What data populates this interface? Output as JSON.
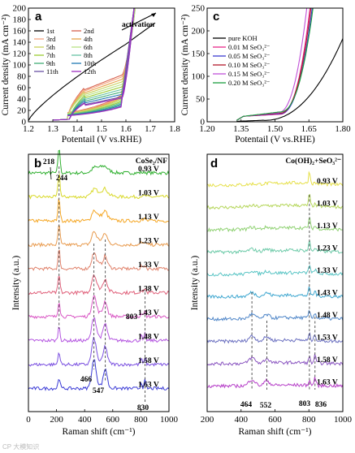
{
  "watermark": "CP 大模知识",
  "chart_data": [
    {
      "panel": "a",
      "type": "line",
      "xlabel": "Potentail (V vs.RHE)",
      "ylabel": "Current density (mA cm⁻²)",
      "xlim": [
        1.2,
        1.8
      ],
      "ylim": [
        0,
        200
      ],
      "xticks": [
        "1.2",
        "1.3",
        "1.4",
        "1.5",
        "1.6",
        "1.7",
        "1.8"
      ],
      "yticks": [
        "0",
        "20",
        "40",
        "60",
        "80",
        "100",
        "120",
        "140",
        "160",
        "180",
        "200"
      ],
      "annotation": "activation",
      "legend_position": "top-left",
      "series": [
        {
          "name": "1st",
          "color": "#000000",
          "onset": 1.26,
          "plateau": 160,
          "end": [
            1.72,
            180
          ],
          "forward": true
        },
        {
          "name": "2nd",
          "color": "#d6604d",
          "onset": 1.36,
          "plateau": 75,
          "end": [
            1.64,
            205
          ]
        },
        {
          "name": "3rd",
          "color": "#f4a582",
          "onset": 1.36,
          "plateau": 72,
          "end": [
            1.64,
            205
          ]
        },
        {
          "name": "4th",
          "color": "#e6a44c",
          "onset": 1.36,
          "plateau": 68,
          "end": [
            1.64,
            205
          ]
        },
        {
          "name": "5th",
          "color": "#c9d15a",
          "onset": 1.36,
          "plateau": 64,
          "end": [
            1.64,
            205
          ]
        },
        {
          "name": "6th",
          "color": "#b8e186",
          "onset": 1.36,
          "plateau": 60,
          "end": [
            1.64,
            205
          ]
        },
        {
          "name": "7th",
          "color": "#9acd32",
          "onset": 1.37,
          "plateau": 56,
          "end": [
            1.635,
            205
          ]
        },
        {
          "name": "8th",
          "color": "#66c2a4",
          "onset": 1.37,
          "plateau": 52,
          "end": [
            1.635,
            205
          ]
        },
        {
          "name": "9th",
          "color": "#41ae76",
          "onset": 1.37,
          "plateau": 48,
          "end": [
            1.635,
            205
          ]
        },
        {
          "name": "10th",
          "color": "#1f78b4",
          "onset": 1.37,
          "plateau": 44,
          "end": [
            1.635,
            205
          ]
        },
        {
          "name": "11th",
          "color": "#6a51a3",
          "onset": 1.37,
          "plateau": 40,
          "end": [
            1.635,
            205
          ]
        },
        {
          "name": "12th",
          "color": "#9e2fbf",
          "onset": 1.37,
          "plateau": 38,
          "end": [
            1.635,
            205
          ]
        }
      ]
    },
    {
      "panel": "c",
      "type": "line",
      "xlabel": "Potentail (V vs.RHE)",
      "ylabel": "Current density (mA cm⁻²)",
      "xlim": [
        1.2,
        1.8
      ],
      "ylim": [
        0,
        250
      ],
      "xticks": [
        "1.20",
        "1.35",
        "1.50",
        "1.65",
        "1.80"
      ],
      "yticks": [
        "0",
        "50",
        "100",
        "150",
        "200",
        "250"
      ],
      "legend_position": "top-left",
      "series": [
        {
          "name": "pure KOH",
          "color": "#000000",
          "onset": 1.45,
          "end": [
            1.8,
            180
          ]
        },
        {
          "name": "0.01 M SeO₃²⁻",
          "color": "#e7298a",
          "onset": 1.52,
          "end": [
            1.655,
            235
          ]
        },
        {
          "name": "0.05 M SeO₃²⁻",
          "color": "#3b3bd1",
          "onset": 1.52,
          "end": [
            1.665,
            235
          ]
        },
        {
          "name": "0.10 M SeO₃²⁻",
          "color": "#b2182b",
          "onset": 1.52,
          "end": [
            1.66,
            235
          ]
        },
        {
          "name": "0.15 M SeO₃²⁻",
          "color": "#c051d8",
          "onset": 1.51,
          "end": [
            1.645,
            250
          ]
        },
        {
          "name": "0.20 M SeO₃²⁻",
          "color": "#1b9e3e",
          "onset": 1.52,
          "end": [
            1.67,
            235
          ]
        }
      ]
    },
    {
      "panel": "b",
      "type": "line",
      "title": "CoSe₂/NF",
      "xlabel": "Raman shift (cm⁻¹)",
      "ylabel": "Intensity (a.u.)",
      "xlim": [
        0,
        1000
      ],
      "xticks": [
        "0",
        "200",
        "400",
        "600",
        "800",
        "1000"
      ],
      "peaks": [
        "218",
        "244",
        "466",
        "547",
        "803",
        "830"
      ],
      "series": [
        {
          "name": "0.93 V",
          "color": "#30b030"
        },
        {
          "name": "1.03 V",
          "color": "#d9d92a"
        },
        {
          "name": "1.13 V",
          "color": "#f5a623"
        },
        {
          "name": "1.23 V",
          "color": "#e89a4d"
        },
        {
          "name": "1.33 V",
          "color": "#e0826b"
        },
        {
          "name": "1.38 V",
          "color": "#e0607a"
        },
        {
          "name": "1.43 V",
          "color": "#d957c4"
        },
        {
          "name": "1.48 V",
          "color": "#b455e0"
        },
        {
          "name": "1.58 V",
          "color": "#7a4fe0"
        },
        {
          "name": "1.63 V",
          "color": "#3b3bd6"
        }
      ]
    },
    {
      "panel": "d",
      "type": "line",
      "title": "Co(OH)₂+SeO₃²⁻",
      "xlabel": "Raman shift (cm⁻¹)",
      "ylabel": "Intensity (a.u.)",
      "xlim": [
        200,
        1000
      ],
      "xticks": [
        "200",
        "400",
        "600",
        "800",
        "1000"
      ],
      "peaks": [
        "464",
        "552",
        "803",
        "836"
      ],
      "series": [
        {
          "name": "0.93 V",
          "color": "#e6e04a"
        },
        {
          "name": "1.03 V",
          "color": "#b5d65a"
        },
        {
          "name": "1.13 V",
          "color": "#8fd172"
        },
        {
          "name": "1.23 V",
          "color": "#6ccaa8"
        },
        {
          "name": "1.33 V",
          "color": "#58c4c4"
        },
        {
          "name": "1.43 V",
          "color": "#3fa7d0"
        },
        {
          "name": "1.48 V",
          "color": "#4f86c8"
        },
        {
          "name": "1.53 V",
          "color": "#6a6fc0"
        },
        {
          "name": "1.58 V",
          "color": "#8a55c0"
        },
        {
          "name": "1.63 V",
          "color": "#b63fc8"
        }
      ]
    }
  ]
}
